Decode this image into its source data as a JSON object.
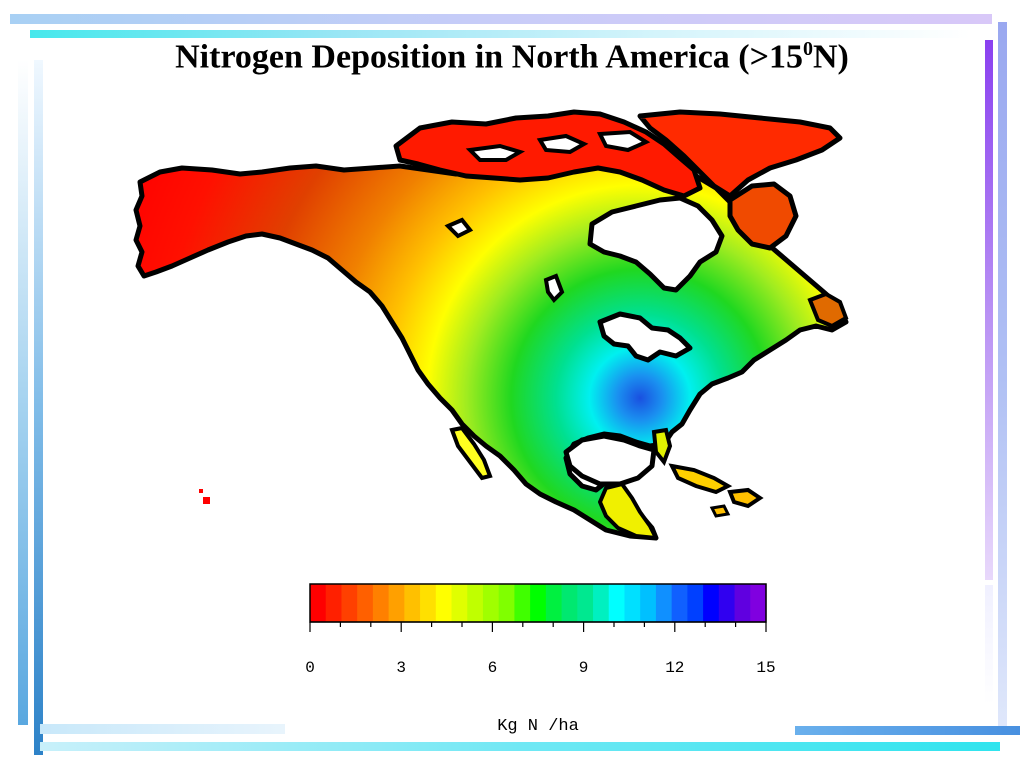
{
  "slide": {
    "title_main": "Nitrogen Deposition in North America (>15",
    "title_sup": "0",
    "title_end": "N)",
    "colors": {
      "bar_top_left": "#b8d8f0",
      "bar_top_right": "#b89af0",
      "bar_bottom": "#5ab0e8",
      "bar_left": "#2d8fd0"
    }
  },
  "map": {
    "region": "North America",
    "background": "#ffffff",
    "outline_color": "#000000",
    "gradient_stops": [
      "#ff0000",
      "#ff7000",
      "#ffff00",
      "#a0ff00",
      "#00e000",
      "#00e890",
      "#00ffff",
      "#1080ff",
      "#0000ff",
      "#8000ff"
    ]
  },
  "colorbar": {
    "ticks": [
      0,
      3,
      6,
      9,
      12,
      15
    ],
    "tick_labels": [
      "0",
      "3",
      "6",
      "9",
      "12",
      "15"
    ],
    "min": 0,
    "max": 15,
    "unit_label": "Kg N /ha",
    "colors": [
      "#ff0000",
      "#ff2000",
      "#ff4000",
      "#ff6000",
      "#ff8000",
      "#ffa000",
      "#ffc000",
      "#ffe000",
      "#ffff00",
      "#e0ff00",
      "#c0ff00",
      "#a0ff00",
      "#80ff00",
      "#40ff00",
      "#00ff00",
      "#00f040",
      "#00e870",
      "#00e890",
      "#00f0c0",
      "#00ffff",
      "#00e0ff",
      "#00c0ff",
      "#1090ff",
      "#1060ff",
      "#0040ff",
      "#0000ff",
      "#3000f0",
      "#6000e0",
      "#8000e0"
    ]
  }
}
